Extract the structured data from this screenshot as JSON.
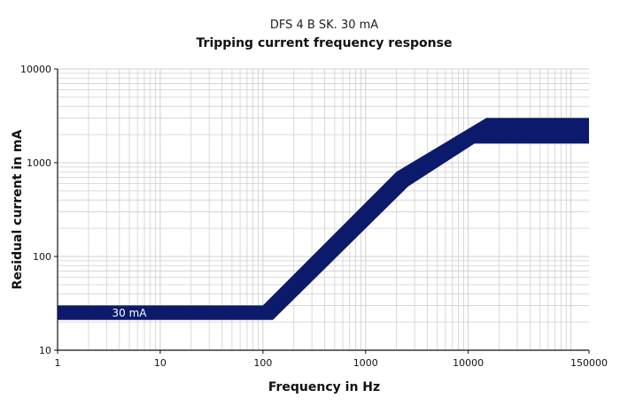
{
  "chart_data": {
    "type": "area",
    "title": "DFS 4 B SK. 30 mA",
    "subtitle": "Tripping current frequency response",
    "xlabel": "Frequency in Hz",
    "ylabel": "Residual current in mA",
    "xscale": "log",
    "yscale": "log",
    "xlim": [
      1,
      150000
    ],
    "ylim": [
      10,
      10000
    ],
    "x_ticks": [
      1,
      10,
      100,
      1000,
      10000,
      150000
    ],
    "x_tick_labels": [
      "1",
      "10",
      "100",
      "1000",
      "10000",
      "150000"
    ],
    "y_ticks": [
      10,
      100,
      1000,
      10000
    ],
    "y_tick_labels": [
      "10",
      "100",
      "1000",
      "10000"
    ],
    "grid": true,
    "band_color": "#0b1a6b",
    "grid_color": "#d0d0d0",
    "series": [
      {
        "name": "",
        "upper": [
          {
            "x": 1,
            "y": 30
          },
          {
            "x": 100,
            "y": 30
          },
          {
            "x": 2000,
            "y": 800
          },
          {
            "x": 15000,
            "y": 3000
          },
          {
            "x": 150000,
            "y": 3000
          }
        ],
        "lower": [
          {
            "x": 1,
            "y": 21
          },
          {
            "x": 125,
            "y": 21
          },
          {
            "x": 2600,
            "y": 560
          },
          {
            "x": 11500,
            "y": 1600
          },
          {
            "x": 150000,
            "y": 1600
          }
        ]
      }
    ],
    "annotations": [
      {
        "text": "30 mA",
        "x": 5,
        "y": 25
      }
    ]
  }
}
